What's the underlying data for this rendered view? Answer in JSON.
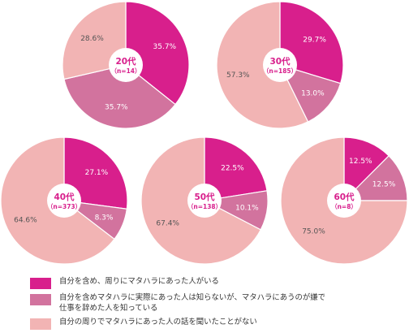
{
  "colors": {
    "magenta": "#d81f8c",
    "mauve": "#d2739e",
    "pink": "#f2b4b4",
    "border": "#ffffff"
  },
  "legend": [
    {
      "label": "自分を含め、周りにマタハラにあった人がいる",
      "color_key": "magenta"
    },
    {
      "label": "自分を含めマタハラに実際にあった人は知らないが、マタハラにあうのが嫌で\n仕事を辞めた人を知っている",
      "color_key": "mauve"
    },
    {
      "label": "自分の周りでマタハラにあった人の話を聞いたことがない",
      "color_key": "pink"
    }
  ],
  "chart_data": [
    {
      "type": "pie",
      "title": "20代",
      "subtitle": "（n=14）",
      "slices": [
        {
          "value": 35.7,
          "label": "35.7%"
        },
        {
          "value": 35.7,
          "label": "35.7%"
        },
        {
          "value": 28.6,
          "label": "28.6%"
        }
      ]
    },
    {
      "type": "pie",
      "title": "30代",
      "subtitle": "（n=185）",
      "slices": [
        {
          "value": 29.7,
          "label": "29.7%"
        },
        {
          "value": 13.0,
          "label": "13.0%"
        },
        {
          "value": 57.3,
          "label": "57.3%"
        }
      ]
    },
    {
      "type": "pie",
      "title": "40代",
      "subtitle": "（n=373）",
      "slices": [
        {
          "value": 27.1,
          "label": "27.1%"
        },
        {
          "value": 8.3,
          "label": "8.3%"
        },
        {
          "value": 64.6,
          "label": "64.6%"
        }
      ]
    },
    {
      "type": "pie",
      "title": "50代",
      "subtitle": "（n=138）",
      "slices": [
        {
          "value": 22.5,
          "label": "22.5%"
        },
        {
          "value": 10.1,
          "label": "10.1%"
        },
        {
          "value": 67.4,
          "label": "67.4%"
        }
      ]
    },
    {
      "type": "pie",
      "title": "60代",
      "subtitle": "（n=8）",
      "slices": [
        {
          "value": 12.5,
          "label": "12.5%"
        },
        {
          "value": 12.5,
          "label": "12.5%"
        },
        {
          "value": 75.0,
          "label": "75.0%"
        }
      ]
    }
  ]
}
